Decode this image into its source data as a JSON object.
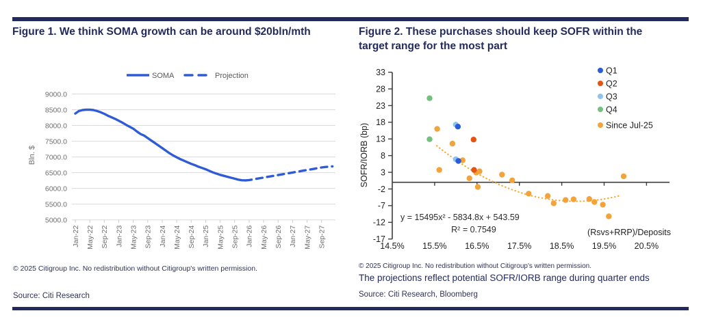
{
  "colors": {
    "navy": "#232a5c",
    "soma_blue": "#2f5cd6",
    "grid_gray": "#d9d9d9",
    "axis_text_gray": "#6e6e6e",
    "legend_text_gray": "#595959",
    "axis_dark": "#3c3c3c",
    "ink": "#1f1f1f",
    "q1_blue": "#2b5dd8",
    "q2_orange": "#e55311",
    "q3_lightblue": "#8fc3ef",
    "q4_green": "#74c17f",
    "since_jul_amber": "#f2a33a",
    "trend_amber": "#f6ac3d"
  },
  "figure1": {
    "title": "Figure 1. We think SOMA growth can be around $20bln/mth",
    "copyright": "© 2025 Citigroup Inc. No redistribution without Citigroup's written permission.",
    "source": "Source: Citi Research"
  },
  "figure2": {
    "title": "Figure 2. These purchases should keep SOFR within the target range for the most part",
    "copyright": "© 2025 Citigroup Inc. No redistribution without Citigroup's written permission.",
    "note": "The projections reflect potential SOFR/IORB range during quarter ends",
    "source": "Source: Citi Research, Bloomberg"
  },
  "chart_data": [
    {
      "type": "line",
      "title": "Figure 1. We think SOMA growth can be around $20bln/mth",
      "ylabel": "Bln. $",
      "ylim": [
        5000,
        9000
      ],
      "ytick_step": 500,
      "ytick_format_decimals": 1,
      "grid": true,
      "legend_position": "top-center",
      "x_tick_labels": [
        "Jan-22",
        "May-22",
        "Sep-22",
        "Jan-23",
        "May-23",
        "Sep-23",
        "Jan-24",
        "May-24",
        "Sep-24",
        "Jan-25",
        "May-25",
        "Sep-25",
        "Jan-26",
        "May-26",
        "Sep-26",
        "Jan-27",
        "May-27",
        "Sep-27"
      ],
      "x_tick_month_step": 4,
      "months_total": 72,
      "series": [
        {
          "name": "SOMA",
          "style": "solid",
          "start_month_index": 0,
          "values": [
            8380,
            8460,
            8490,
            8500,
            8500,
            8490,
            8460,
            8420,
            8370,
            8310,
            8260,
            8210,
            8150,
            8090,
            8020,
            7960,
            7900,
            7810,
            7730,
            7680,
            7600,
            7520,
            7440,
            7360,
            7280,
            7200,
            7120,
            7050,
            6990,
            6930,
            6880,
            6830,
            6780,
            6740,
            6690,
            6650,
            6610,
            6560,
            6510,
            6470,
            6430,
            6400,
            6370,
            6340,
            6310,
            6280,
            6260,
            6255
          ]
        },
        {
          "name": "Projection",
          "style": "dashed",
          "start_month_index": 47,
          "values": [
            6255,
            6265,
            6285,
            6305,
            6325,
            6345,
            6365,
            6385,
            6405,
            6425,
            6445,
            6465,
            6485,
            6505,
            6525,
            6545,
            6565,
            6585,
            6605,
            6625,
            6645,
            6665,
            6680,
            6690,
            6700
          ]
        }
      ]
    },
    {
      "type": "scatter",
      "title": "Figure 2. These purchases should keep SOFR within the target range for the most part",
      "xlabel": "(Rsvs+RRP)/Deposits",
      "ylabel": "SOFR/IORB (bp)",
      "xlim_pct": [
        14.5,
        20.5
      ],
      "xtick_step_pct": 1.0,
      "ylim": [
        -17,
        33
      ],
      "ytick_step": 5,
      "legend_position": "top-right",
      "series": [
        {
          "name": "Since Jul-25",
          "color": "#f2a33a",
          "points": [
            [
              15.56,
              16.0
            ],
            [
              15.92,
              11.6
            ],
            [
              16.16,
              6.6
            ],
            [
              15.61,
              3.7
            ],
            [
              16.48,
              2.9
            ],
            [
              16.56,
              3.3
            ],
            [
              16.32,
              1.2
            ],
            [
              17.09,
              2.3
            ],
            [
              17.33,
              0.6
            ],
            [
              16.52,
              -1.4
            ],
            [
              17.72,
              -3.4
            ],
            [
              18.17,
              -4.1
            ],
            [
              18.31,
              -6.3
            ],
            [
              18.59,
              -5.3
            ],
            [
              18.78,
              -5.1
            ],
            [
              19.15,
              -5.0
            ],
            [
              19.27,
              -5.9
            ],
            [
              19.47,
              -6.7
            ],
            [
              19.61,
              -10.2
            ],
            [
              19.96,
              1.8
            ]
          ]
        },
        {
          "name": "Q4",
          "color": "#74c17f",
          "points": [
            [
              15.38,
              25.2
            ],
            [
              15.38,
              12.9
            ]
          ]
        },
        {
          "name": "Q3",
          "color": "#8fc3ef",
          "points": [
            [
              16.0,
              17.3
            ],
            [
              16.0,
              6.9
            ]
          ]
        },
        {
          "name": "Q2",
          "color": "#e55311",
          "points": [
            [
              16.42,
              12.8
            ],
            [
              16.43,
              3.7
            ]
          ]
        },
        {
          "name": "Q1",
          "color": "#2b5dd8",
          "points": [
            [
              16.05,
              16.7
            ],
            [
              16.06,
              6.4
            ]
          ]
        }
      ],
      "legend_order": [
        "Q1",
        "Q2",
        "Q3",
        "Q4",
        "Since Jul-25"
      ],
      "trendline": {
        "type": "quadratic",
        "a": 15495,
        "b": -5834.8,
        "c": 543.59,
        "x_domain_pct": [
          15.55,
          19.88
        ],
        "equation_label": "y = 15495x² - 5834.8x + 543.59",
        "r2_label": "R² = 0.7549"
      }
    }
  ]
}
